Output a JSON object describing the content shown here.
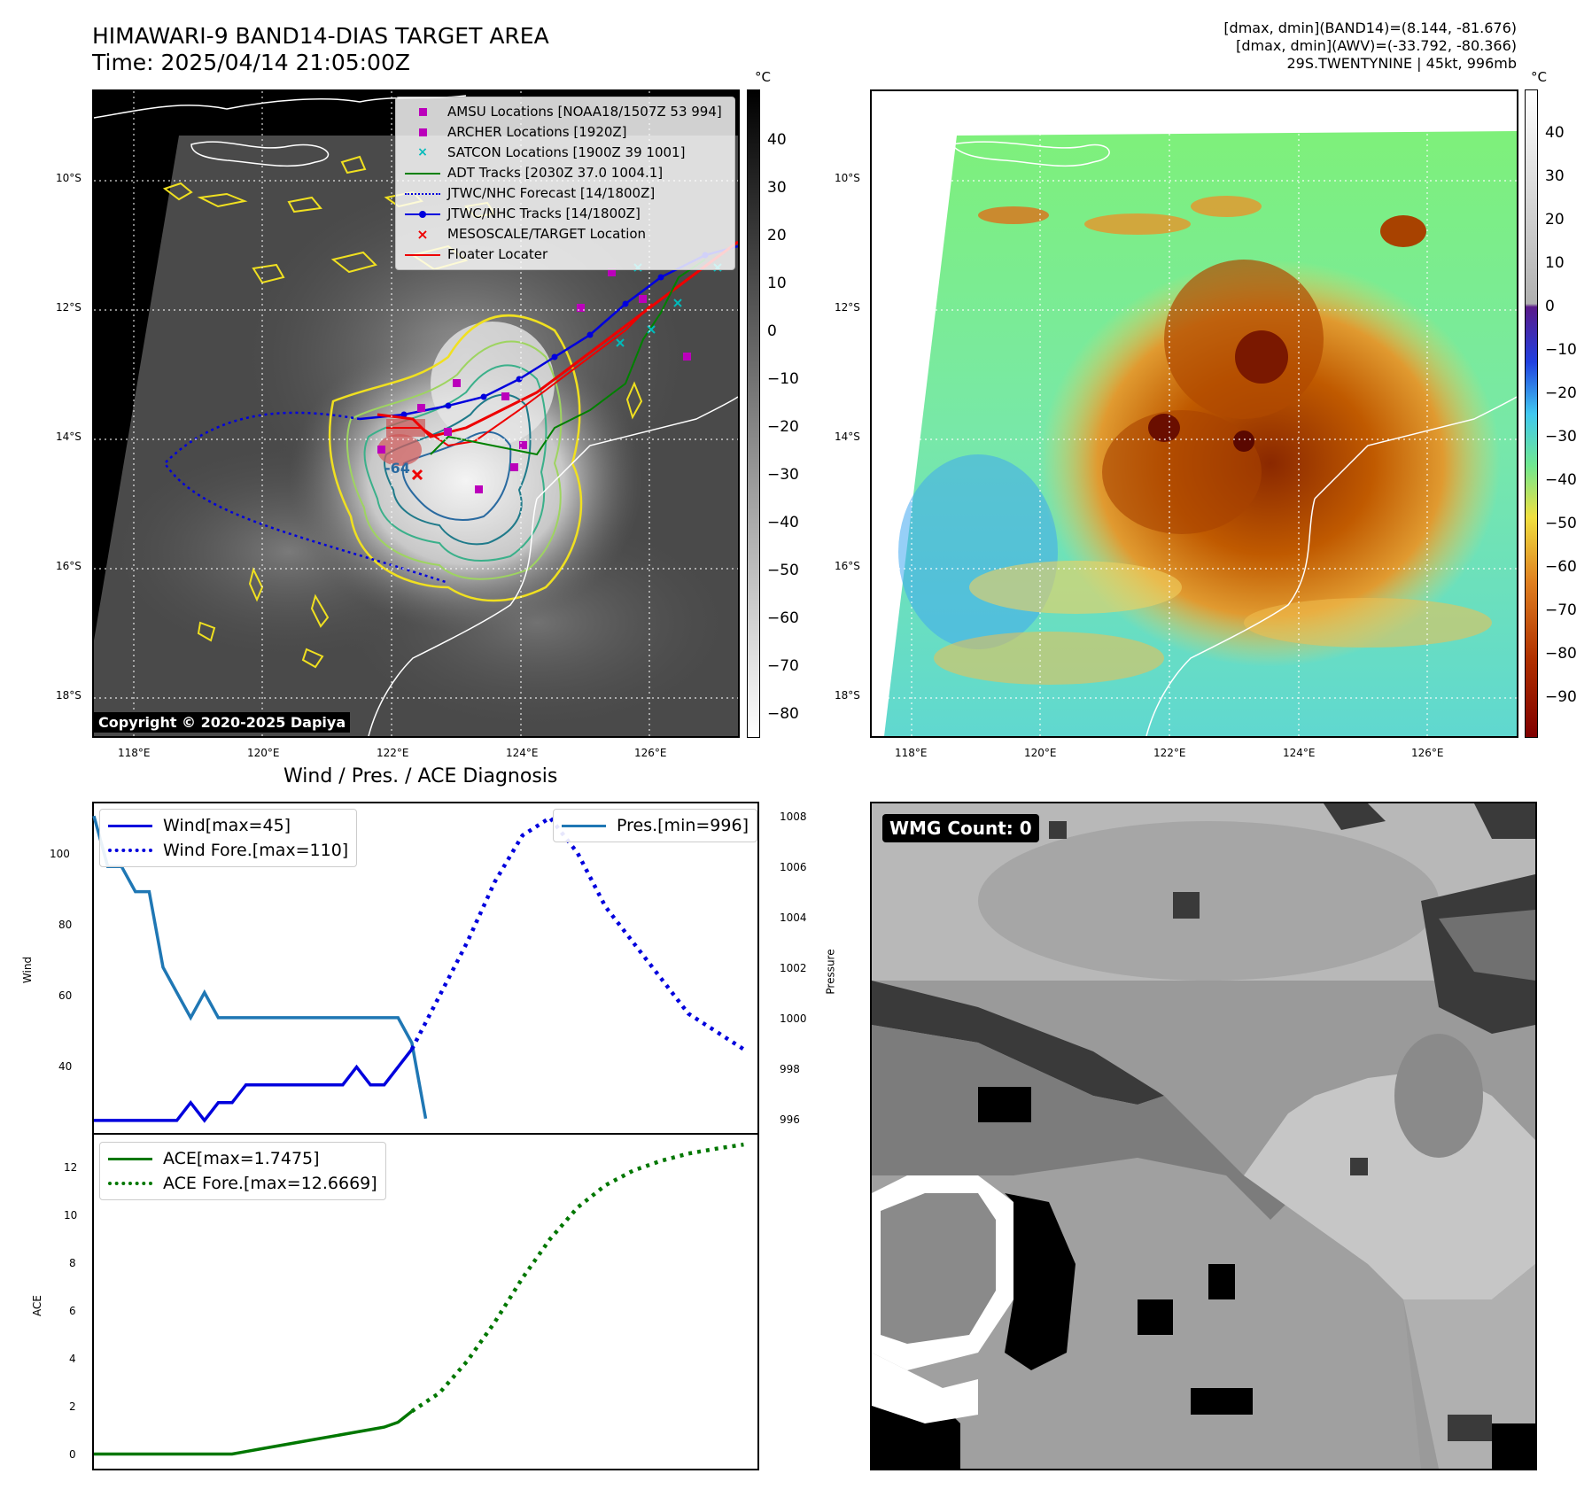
{
  "header": {
    "title_line1": "HIMAWARI-9 BAND14-DIAS TARGET AREA",
    "title_line2": "Time: 2025/04/14 21:05:00Z",
    "info_line1": "[dmax, dmin](BAND14)=(8.144, -81.676)",
    "info_line2": "[dmax, dmin](AWV)=(-33.792, -80.366)",
    "info_line3": "29S.TWENTYNINE | 45kt, 996mb"
  },
  "map_axes": {
    "lon_ticks": [
      "118°E",
      "120°E",
      "122°E",
      "124°E",
      "126°E"
    ],
    "lat_ticks": [
      "10°S",
      "12°S",
      "14°S",
      "16°S",
      "18°S"
    ]
  },
  "left_map": {
    "legend": [
      {
        "label": "AMSU Locations [NOAA18/1507Z 53 994]",
        "symbol": "square",
        "color": "#bb00bb"
      },
      {
        "label": "ARCHER Locations [1920Z]",
        "symbol": "square",
        "color": "#bb00bb"
      },
      {
        "label": "SATCON Locations [1900Z 39 1001]",
        "symbol": "x",
        "color": "#00bbbb"
      },
      {
        "label": "ADT Tracks [2030Z 37.0 1004.1]",
        "symbol": "line",
        "color": "#008000"
      },
      {
        "label": "JTWC/NHC Forecast [14/1800Z]",
        "symbol": "dotted",
        "color": "#0000dd"
      },
      {
        "label": "JTWC/NHC Tracks [14/1800Z]",
        "symbol": "line-dot",
        "color": "#0000dd"
      },
      {
        "label": "MESOSCALE/TARGET Location",
        "symbol": "x",
        "color": "#ee0000"
      },
      {
        "label": "Floater Locater",
        "symbol": "line",
        "color": "#ee0000"
      }
    ],
    "contour_label": "-64",
    "copyright": "Copyright © 2020-2025 Dapiya",
    "colorbar": {
      "unit": "°C",
      "ticks": [
        "40",
        "30",
        "20",
        "10",
        "0",
        "−10",
        "−20",
        "−30",
        "−40",
        "−50",
        "−60",
        "−70",
        "−80"
      ]
    }
  },
  "right_map": {
    "colorbar": {
      "unit": "°C",
      "ticks": [
        "40",
        "30",
        "20",
        "10",
        "0",
        "−10",
        "−20",
        "−30",
        "−40",
        "−50",
        "−60",
        "−70",
        "−80",
        "−90"
      ]
    }
  },
  "diagnosis": {
    "title": "Wind / Pres. / ACE Diagnosis",
    "wind_axis_label": "Wind",
    "pressure_axis_label": "Pressure",
    "ace_axis_label": "ACE",
    "wind_ticks": [
      "100",
      "80",
      "60",
      "40"
    ],
    "pressure_ticks": [
      "1008",
      "1006",
      "1004",
      "1002",
      "1000",
      "998",
      "996"
    ],
    "ace_ticks": [
      "12",
      "10",
      "8",
      "6",
      "4",
      "2",
      "0"
    ],
    "legend_wind": "Wind[max=45]",
    "legend_wind_fore": "Wind Fore.[max=110]",
    "legend_pres": "Pres.[min=996]",
    "legend_ace": "ACE[max=1.7475]",
    "legend_ace_fore": "ACE Fore.[max=12.6669]"
  },
  "wmg": {
    "label": "WMG Count: 0"
  },
  "colors": {
    "wind": "#0000dd",
    "pressure": "#1f77b4",
    "ace": "#007700"
  },
  "chart_data": [
    {
      "type": "line",
      "title": "Wind / Pres. / ACE Diagnosis",
      "ylabel": "Wind",
      "ylim": [
        22,
        114
      ],
      "series": [
        {
          "name": "Wind[max=45]",
          "x": [
            0,
            1,
            2,
            3,
            4,
            5,
            6,
            7,
            8,
            9,
            10,
            11,
            12,
            13,
            14,
            15,
            16,
            17,
            18,
            19,
            20,
            21,
            22,
            23
          ],
          "values": [
            25,
            25,
            25,
            25,
            25,
            25,
            25,
            30,
            25,
            30,
            30,
            35,
            35,
            35,
            35,
            35,
            35,
            35,
            35,
            40,
            35,
            35,
            40,
            45
          ]
        },
        {
          "name": "Wind Fore.[max=110]",
          "x": [
            23,
            25,
            27,
            29,
            31,
            33,
            35,
            37,
            39,
            41,
            43,
            45,
            47
          ],
          "values": [
            45,
            60,
            75,
            92,
            105,
            110,
            100,
            85,
            75,
            65,
            55,
            50,
            45
          ]
        }
      ]
    },
    {
      "type": "line",
      "ylabel": "Pressure",
      "ylim": [
        995.5,
        1008.5
      ],
      "series": [
        {
          "name": "Pres.[min=996]",
          "x": [
            0,
            1,
            2,
            3,
            4,
            5,
            6,
            7,
            8,
            9,
            10,
            11,
            12,
            13,
            14,
            15,
            16,
            17,
            18,
            19,
            20,
            21,
            22,
            23,
            24
          ],
          "values": [
            1008,
            1006,
            1006,
            1005,
            1005,
            1002,
            1001,
            1000,
            1001,
            1000,
            1000,
            1000,
            1000,
            1000,
            1000,
            1000,
            1000,
            1000,
            1000,
            1000,
            1000,
            1000,
            1000,
            999,
            996
          ]
        }
      ]
    },
    {
      "type": "line",
      "ylabel": "ACE",
      "ylim": [
        -0.6,
        13.0
      ],
      "series": [
        {
          "name": "ACE[max=1.7475]",
          "x": [
            0,
            2,
            4,
            6,
            8,
            10,
            11,
            12,
            14,
            16,
            18,
            19,
            20,
            21,
            22,
            23
          ],
          "values": [
            0,
            0,
            0,
            0,
            0,
            0,
            0.1,
            0.2,
            0.4,
            0.6,
            0.8,
            0.9,
            1.0,
            1.1,
            1.3,
            1.75
          ]
        },
        {
          "name": "ACE Fore.[max=12.6669]",
          "x": [
            23,
            25,
            27,
            29,
            31,
            33,
            35,
            37,
            39,
            41,
            43,
            45,
            47
          ],
          "values": [
            1.75,
            2.5,
            3.8,
            5.4,
            7.2,
            8.8,
            10.1,
            11.0,
            11.6,
            12.0,
            12.3,
            12.5,
            12.67
          ]
        }
      ]
    }
  ]
}
